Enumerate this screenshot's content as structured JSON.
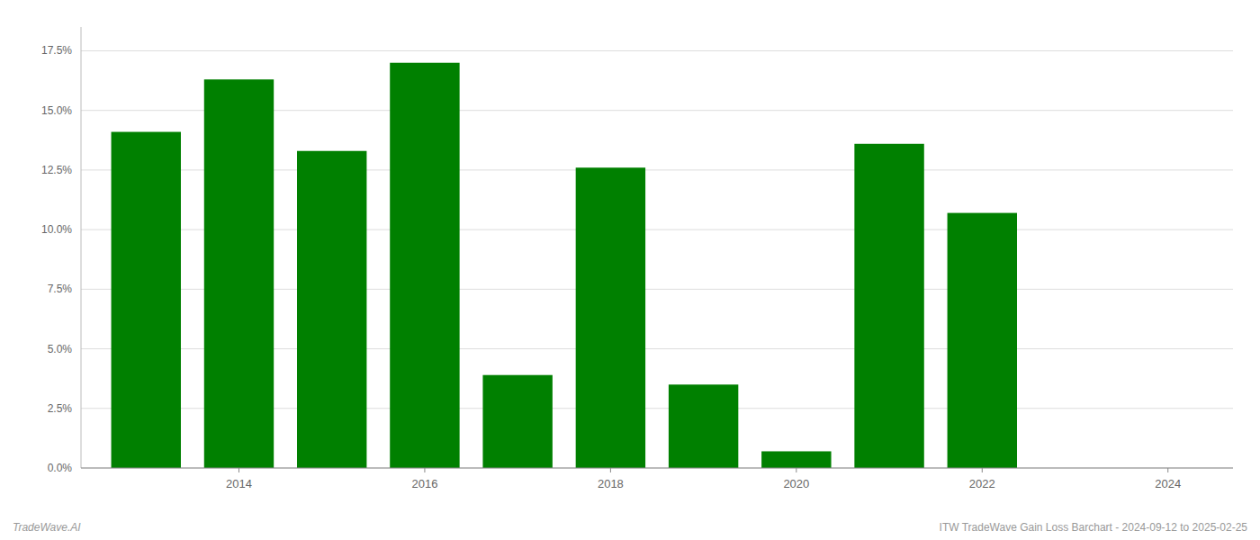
{
  "chart_data": {
    "type": "bar",
    "x": [
      2013,
      2014,
      2015,
      2016,
      2017,
      2018,
      2019,
      2020,
      2021,
      2022,
      2023
    ],
    "values": [
      0.141,
      0.163,
      0.133,
      0.17,
      0.039,
      0.126,
      0.035,
      0.007,
      0.136,
      0.107,
      0.0
    ],
    "color": "#008000",
    "xlim": [
      2012.3,
      2024.7
    ],
    "xticks": [
      2014,
      2016,
      2018,
      2020,
      2022,
      2024
    ],
    "ylim": [
      0,
      0.185
    ],
    "yticks": [
      {
        "value": 0.0,
        "label": "0.0%"
      },
      {
        "value": 0.025,
        "label": "2.5%"
      },
      {
        "value": 0.05,
        "label": "5.0%"
      },
      {
        "value": 0.075,
        "label": "7.5%"
      },
      {
        "value": 0.1,
        "label": "10.0%"
      },
      {
        "value": 0.125,
        "label": "12.5%"
      },
      {
        "value": 0.15,
        "label": "15.0%"
      },
      {
        "value": 0.175,
        "label": "17.5%"
      }
    ],
    "grid": true,
    "annotations": [
      "TradeWave.AI",
      "ITW TradeWave Gain Loss Barchart - 2024-09-12 to 2025-02-25"
    ]
  }
}
